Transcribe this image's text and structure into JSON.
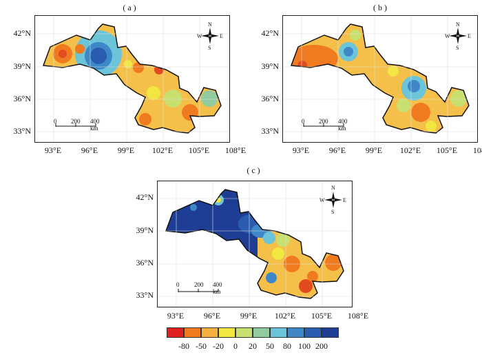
{
  "panels": [
    {
      "label": "( a )"
    },
    {
      "label": "( b )"
    },
    {
      "label": "( c )"
    }
  ],
  "axes": {
    "lat_ticks": [
      "42°N",
      "39°N",
      "36°N",
      "33°N"
    ],
    "lon_ticks": [
      "93°E",
      "96°E",
      "99°E",
      "102°E",
      "105°E",
      "108°E"
    ]
  },
  "compass": {
    "n": "N",
    "s": "S",
    "e": "E",
    "w": "W"
  },
  "scale_bar": {
    "labels": [
      "0",
      "200",
      "400 km"
    ]
  },
  "legend": {
    "labels": [
      "-80",
      "-50",
      "-20",
      "0",
      "20",
      "50",
      "80",
      "100",
      "200"
    ],
    "colors": [
      "#e02020",
      "#f07a20",
      "#f5b040",
      "#f2e640",
      "#c8e070",
      "#90cca0",
      "#6cc4d8",
      "#3e88c8",
      "#2a5cb0",
      "#1d3e94"
    ]
  }
}
